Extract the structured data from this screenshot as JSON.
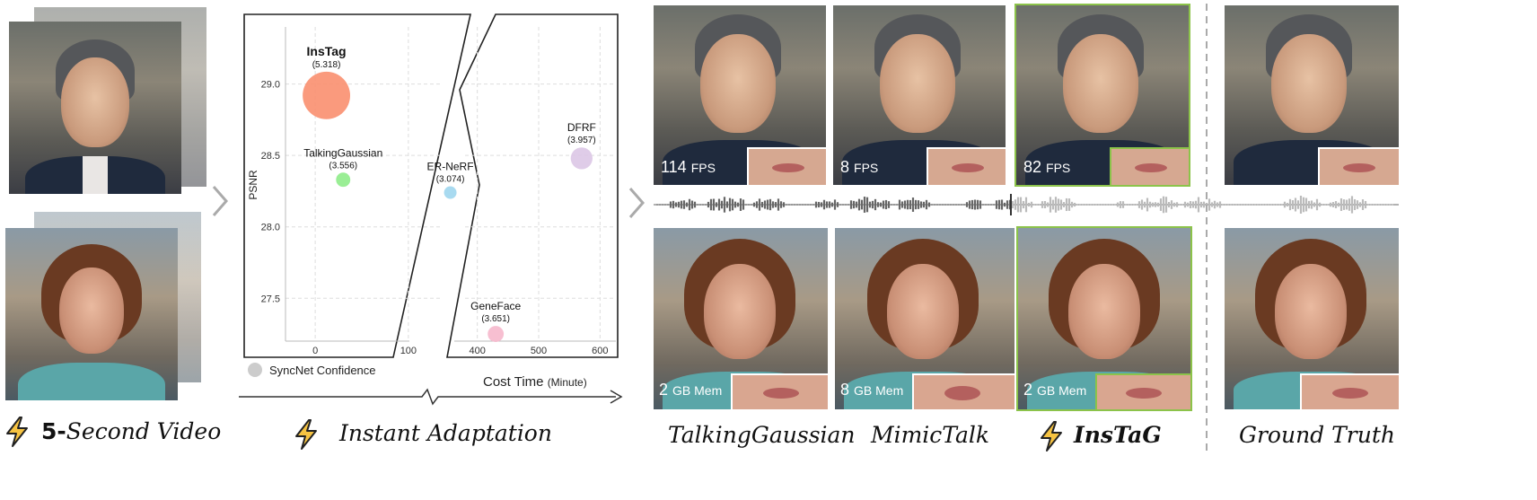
{
  "left": {
    "caption_bold": "5-",
    "caption_rest": "Second Video"
  },
  "middle": {
    "caption": "Instant Adaptation",
    "legend": "SyncNet Confidence",
    "x_title": "Cost Time",
    "x_unit": "(Minute)"
  },
  "chart_data": {
    "type": "scatter",
    "title": "",
    "xlabel": "Cost Time (Minute)",
    "ylabel": "PSNR",
    "ylim": [
      27.2,
      29.4
    ],
    "y_ticks": [
      "29.0",
      "28.5",
      "28.0",
      "27.5"
    ],
    "y_tick_values": [
      29.0,
      28.5,
      28.0,
      27.5
    ],
    "x_ticks_left": [
      "0",
      "100"
    ],
    "x_tick_values_left": [
      0,
      100
    ],
    "x_ticks_right": [
      "400",
      "500",
      "600"
    ],
    "x_tick_values_right": [
      400,
      500,
      600
    ],
    "xlim_left": [
      -30,
      130
    ],
    "xlim_right": [
      380,
      620
    ],
    "axis_break": true,
    "grid": true,
    "bubble_size_meaning": "SyncNet Confidence",
    "points": [
      {
        "name": "InsTag",
        "label": "(5.318)",
        "x": 12,
        "y": 28.92,
        "size": 5.318,
        "color": "#f98f6f",
        "bold": true
      },
      {
        "name": "TalkingGaussian",
        "label": "(3.556)",
        "x": 30,
        "y": 28.33,
        "size": 3.556,
        "color": "#8fec8a",
        "bold": false
      },
      {
        "name": "ER-NeRF",
        "label": "(3.074)",
        "x": 145,
        "y": 28.24,
        "size": 3.074,
        "color": "#9fd6ee",
        "bold": false
      },
      {
        "name": "GeneFace",
        "label": "(3.651)",
        "x": 430,
        "y": 27.25,
        "size": 3.651,
        "color": "#f6b8cc",
        "bold": false
      },
      {
        "name": "DFRF",
        "label": "(3.957)",
        "x": 570,
        "y": 28.48,
        "size": 3.957,
        "color": "#dcc6e6",
        "bold": false
      }
    ]
  },
  "results": {
    "methods": [
      {
        "name": "TalkingGaussian",
        "fps": "114",
        "mem": "2"
      },
      {
        "name": "MimicTalk",
        "fps": "8",
        "mem": "8"
      },
      {
        "name": "InsTaG",
        "fps": "82",
        "mem": "2"
      },
      {
        "name": "Ground Truth",
        "fps": "",
        "mem": ""
      }
    ],
    "fps_unit": "FPS",
    "mem_unit": "GB Mem"
  },
  "colors": {
    "highlight": "#8cc34a",
    "bolt_fill": "#f6c342",
    "bolt_stroke": "#222222"
  }
}
